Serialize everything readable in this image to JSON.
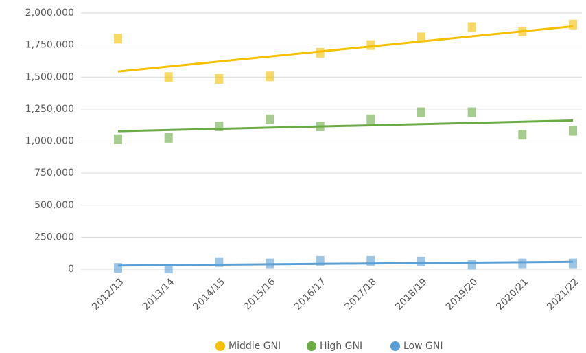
{
  "chart_data": {
    "type": "scatter",
    "trendline": "linear",
    "grid": true,
    "legend": "bottom",
    "categories": [
      "2012/13",
      "2013/14",
      "2014/15",
      "2015/16",
      "2016/17",
      "2017/18",
      "2018/19",
      "2019/20",
      "2020/21",
      "2021/22"
    ],
    "series": [
      {
        "name": "Middle GNI",
        "color": "#f5c000",
        "values": [
          1800000,
          1500000,
          1485000,
          1505000,
          1690000,
          1750000,
          1810000,
          1890000,
          1855000,
          1910000
        ]
      },
      {
        "name": "High GNI",
        "color": "#6aab45",
        "values": [
          1015000,
          1025000,
          1115000,
          1170000,
          1115000,
          1170000,
          1225000,
          1225000,
          1050000,
          1080000
        ]
      },
      {
        "name": "Low GNI",
        "color": "#5a9fd6",
        "values": [
          10000,
          5000,
          55000,
          45000,
          65000,
          65000,
          60000,
          35000,
          45000,
          45000
        ]
      }
    ],
    "ylim": [
      0,
      2000000
    ],
    "yticks": [
      0,
      {
        "value": 250000,
        "label": "250,000"
      },
      {
        "value": 500000,
        "label": "500,000"
      },
      {
        "value": 750000,
        "label": "750,000"
      },
      {
        "value": 1000000,
        "label": "1,000,000"
      },
      {
        "value": 1250000,
        "label": "1,250,000"
      },
      {
        "value": 1500000,
        "label": "1,500,000"
      },
      {
        "value": 1750000,
        "label": "1,750,000"
      },
      {
        "value": 2000000,
        "label": "2,000,000"
      }
    ]
  }
}
